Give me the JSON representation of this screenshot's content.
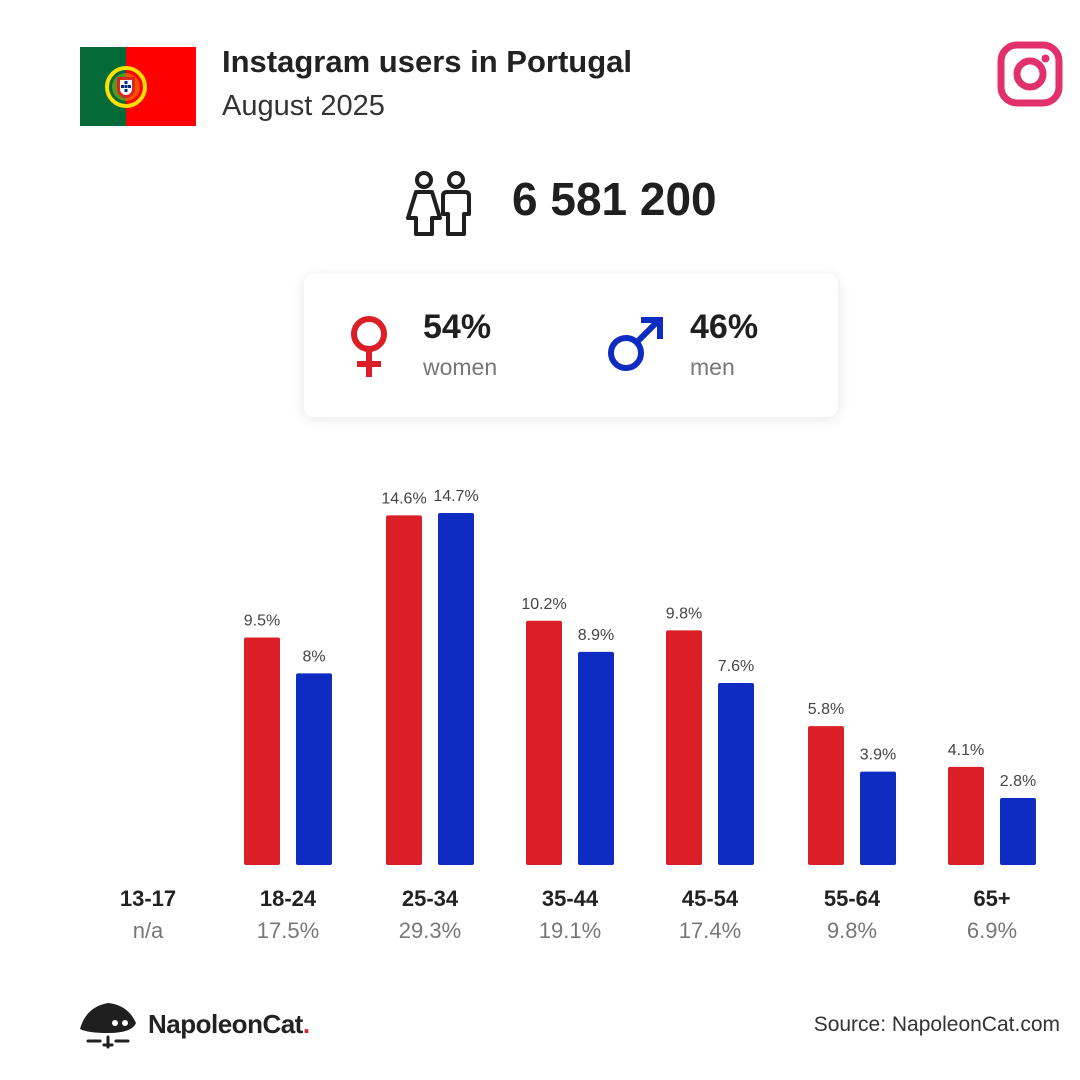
{
  "header": {
    "title": "Instagram users in Portugal",
    "subtitle": "August 2025",
    "flag_icon": "portugal-flag-icon",
    "platform_icon": "instagram-icon",
    "platform_color": "#e1306c"
  },
  "totals": {
    "users": "6 581 200",
    "icon": "people-icon"
  },
  "gender": {
    "women": {
      "percent": "54%",
      "label": "women",
      "icon": "female-symbol-icon",
      "color": "#dc1f26"
    },
    "men": {
      "percent": "46%",
      "label": "men",
      "icon": "male-symbol-icon",
      "color": "#0f2cc2"
    }
  },
  "chart_data": {
    "type": "bar",
    "categories": [
      "13-17",
      "18-24",
      "25-34",
      "35-44",
      "45-54",
      "55-64",
      "65+"
    ],
    "category_totals": [
      "n/a",
      "17.5%",
      "29.3%",
      "19.1%",
      "17.4%",
      "9.8%",
      "6.9%"
    ],
    "series": [
      {
        "color": "#dc1f26",
        "values": [
          null,
          9.5,
          14.6,
          10.2,
          9.8,
          5.8,
          4.1
        ],
        "labels": [
          "",
          "9.5%",
          "14.6%",
          "10.2%",
          "9.8%",
          "5.8%",
          "4.1%"
        ]
      },
      {
        "color": "#0f2cc2",
        "values": [
          null,
          8,
          14.7,
          8.9,
          7.6,
          3.9,
          2.8
        ],
        "labels": [
          "",
          "8%",
          "14.7%",
          "8.9%",
          "7.6%",
          "3.9%",
          "2.8%"
        ]
      }
    ],
    "ylim": [
      0,
      14.7
    ],
    "grid": false
  },
  "footer": {
    "brand": "NapoleonCat",
    "brand_dot": ".",
    "brand_icon": "napoleoncat-logo-icon",
    "source": "Source: NapoleonCat.com"
  }
}
